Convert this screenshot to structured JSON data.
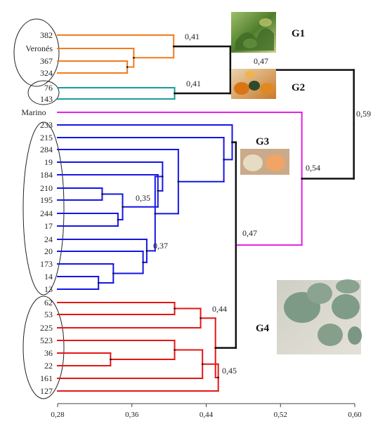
{
  "dendrogram": {
    "axis": {
      "min": 0.28,
      "max": 0.6,
      "ticks": [
        "0,28",
        "0,36",
        "0,44",
        "0,52",
        "0,60"
      ]
    },
    "leaves": [
      "382",
      "Veronés",
      "367",
      "324",
      "76",
      "143",
      "Marino",
      "233",
      "215",
      "284",
      "19",
      "184",
      "210",
      "195",
      "244",
      "17",
      "24",
      "20",
      "173",
      "14",
      "13",
      "62",
      "53",
      "225",
      "523",
      "36",
      "22",
      "161",
      "127"
    ],
    "similarity_labels": {
      "g1_join": "0,41",
      "g2_join": "0,41",
      "g1_g2_join": "0,47",
      "top_join": "0,59",
      "g3_marino_join": "0,54",
      "g3_g4_join": "0,47",
      "g3_inner": "0,35",
      "g3_lower": "0,37",
      "g4_upper": "0,44",
      "g4_lower": "0,45"
    },
    "groups": [
      {
        "name": "G1",
        "color": "#f07c1e",
        "image": "pumpkin plant with leaves"
      },
      {
        "name": "G2",
        "color": "#1a9e98",
        "image": "orange pumpkins"
      },
      {
        "name": "G3",
        "color": "#1515e6",
        "image": "pale pumpkins"
      },
      {
        "name": "G4",
        "color": "#e61515",
        "image": "grey-green pumpkins"
      }
    ],
    "marino_color": "#e61ee6"
  }
}
